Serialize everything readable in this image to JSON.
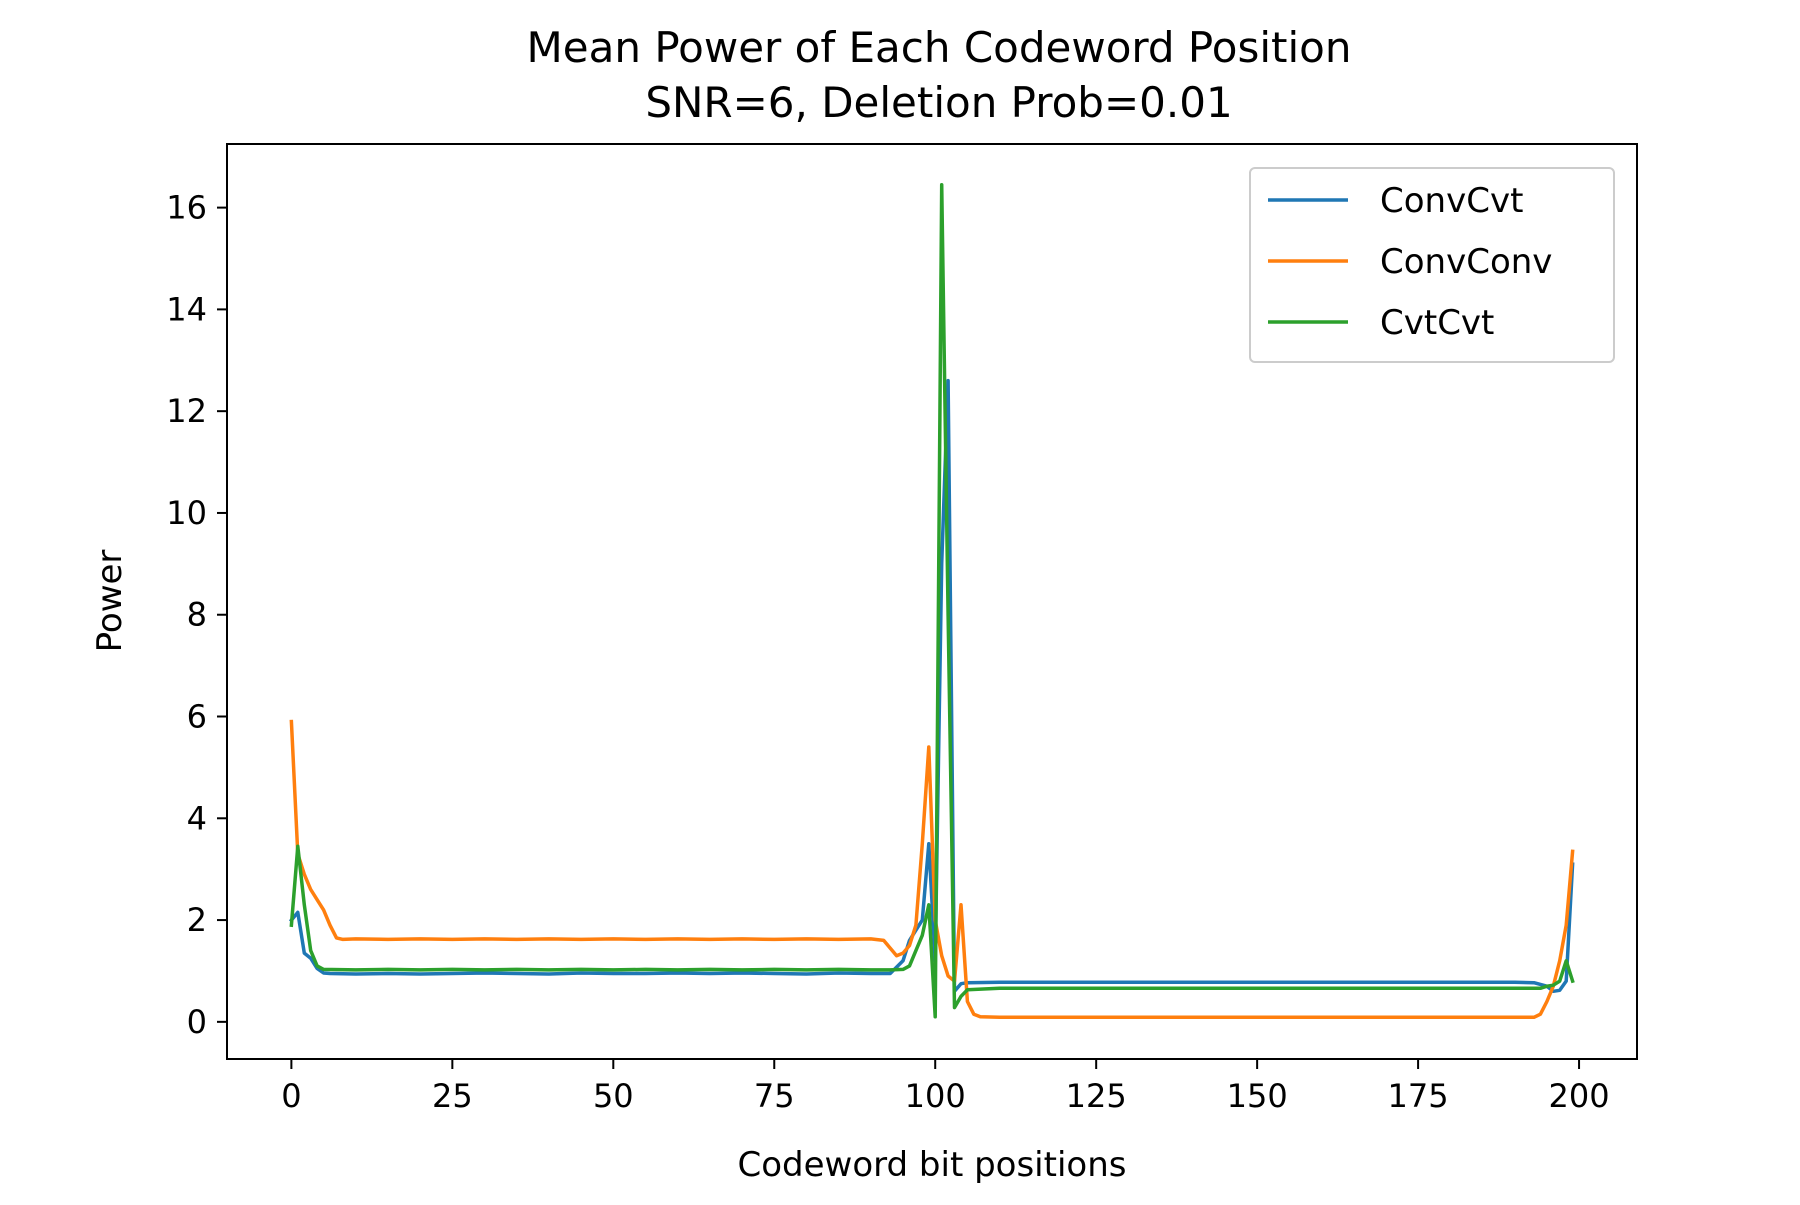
{
  "chart_data": {
    "type": "line",
    "title": "Mean Power of Each Codeword Position",
    "subtitle": "SNR=6, Deletion Prob=0.01",
    "xlabel": "Codeword bit positions",
    "ylabel": "Power",
    "xlim": [
      -10,
      209
    ],
    "ylim": [
      -0.73,
      17.25
    ],
    "xticks": [
      0,
      25,
      50,
      75,
      100,
      125,
      150,
      175,
      200
    ],
    "yticks": [
      0,
      2,
      4,
      6,
      8,
      10,
      12,
      14,
      16
    ],
    "grid": false,
    "legend_position": "top-right",
    "series": [
      {
        "name": "ConvCvt",
        "color": "#1f77b4",
        "points": [
          [
            0,
            2.0
          ],
          [
            1,
            2.15
          ],
          [
            2,
            1.35
          ],
          [
            3,
            1.25
          ],
          [
            4,
            1.05
          ],
          [
            5,
            0.96
          ],
          [
            6,
            0.95
          ],
          [
            10,
            0.94
          ],
          [
            15,
            0.95
          ],
          [
            20,
            0.94
          ],
          [
            25,
            0.95
          ],
          [
            30,
            0.96
          ],
          [
            35,
            0.95
          ],
          [
            40,
            0.94
          ],
          [
            45,
            0.96
          ],
          [
            50,
            0.95
          ],
          [
            55,
            0.95
          ],
          [
            60,
            0.96
          ],
          [
            65,
            0.95
          ],
          [
            70,
            0.96
          ],
          [
            75,
            0.95
          ],
          [
            80,
            0.94
          ],
          [
            85,
            0.96
          ],
          [
            90,
            0.95
          ],
          [
            93,
            0.95
          ],
          [
            95,
            1.2
          ],
          [
            96,
            1.6
          ],
          [
            97,
            1.8
          ],
          [
            98,
            2.0
          ],
          [
            99,
            3.5
          ],
          [
            100,
            1.2
          ],
          [
            101,
            9.0
          ],
          [
            102,
            12.6
          ],
          [
            103,
            0.6
          ],
          [
            104,
            0.75
          ],
          [
            105,
            0.77
          ],
          [
            110,
            0.78
          ],
          [
            120,
            0.78
          ],
          [
            130,
            0.78
          ],
          [
            140,
            0.78
          ],
          [
            150,
            0.78
          ],
          [
            160,
            0.78
          ],
          [
            170,
            0.78
          ],
          [
            180,
            0.78
          ],
          [
            190,
            0.78
          ],
          [
            193,
            0.77
          ],
          [
            195,
            0.7
          ],
          [
            196,
            0.6
          ],
          [
            197,
            0.62
          ],
          [
            198,
            0.8
          ],
          [
            199,
            3.1
          ]
        ]
      },
      {
        "name": "ConvConv",
        "color": "#ff7f0e",
        "points": [
          [
            0,
            5.9
          ],
          [
            1,
            3.3
          ],
          [
            2,
            2.9
          ],
          [
            3,
            2.6
          ],
          [
            4,
            2.4
          ],
          [
            5,
            2.2
          ],
          [
            6,
            1.9
          ],
          [
            7,
            1.65
          ],
          [
            8,
            1.62
          ],
          [
            10,
            1.63
          ],
          [
            15,
            1.62
          ],
          [
            20,
            1.63
          ],
          [
            25,
            1.62
          ],
          [
            30,
            1.63
          ],
          [
            35,
            1.62
          ],
          [
            40,
            1.63
          ],
          [
            45,
            1.62
          ],
          [
            50,
            1.63
          ],
          [
            55,
            1.62
          ],
          [
            60,
            1.63
          ],
          [
            65,
            1.62
          ],
          [
            70,
            1.63
          ],
          [
            75,
            1.62
          ],
          [
            80,
            1.63
          ],
          [
            85,
            1.62
          ],
          [
            90,
            1.63
          ],
          [
            92,
            1.6
          ],
          [
            93,
            1.45
          ],
          [
            94,
            1.3
          ],
          [
            95,
            1.35
          ],
          [
            96,
            1.5
          ],
          [
            97,
            1.9
          ],
          [
            98,
            3.5
          ],
          [
            99,
            5.4
          ],
          [
            100,
            2.0
          ],
          [
            101,
            1.3
          ],
          [
            102,
            0.9
          ],
          [
            103,
            0.8
          ],
          [
            104,
            2.3
          ],
          [
            105,
            0.4
          ],
          [
            106,
            0.15
          ],
          [
            107,
            0.1
          ],
          [
            110,
            0.09
          ],
          [
            120,
            0.09
          ],
          [
            130,
            0.09
          ],
          [
            140,
            0.09
          ],
          [
            150,
            0.09
          ],
          [
            160,
            0.09
          ],
          [
            170,
            0.09
          ],
          [
            180,
            0.09
          ],
          [
            190,
            0.09
          ],
          [
            193,
            0.09
          ],
          [
            194,
            0.15
          ],
          [
            195,
            0.4
          ],
          [
            196,
            0.7
          ],
          [
            197,
            1.2
          ],
          [
            198,
            1.9
          ],
          [
            199,
            3.35
          ]
        ]
      },
      {
        "name": "CvtCvt",
        "color": "#2ca02c",
        "points": [
          [
            0,
            1.9
          ],
          [
            1,
            3.45
          ],
          [
            2,
            2.3
          ],
          [
            3,
            1.4
          ],
          [
            4,
            1.1
          ],
          [
            5,
            1.03
          ],
          [
            10,
            1.02
          ],
          [
            15,
            1.03
          ],
          [
            20,
            1.02
          ],
          [
            25,
            1.03
          ],
          [
            30,
            1.02
          ],
          [
            35,
            1.03
          ],
          [
            40,
            1.02
          ],
          [
            45,
            1.03
          ],
          [
            50,
            1.02
          ],
          [
            55,
            1.03
          ],
          [
            60,
            1.02
          ],
          [
            65,
            1.03
          ],
          [
            70,
            1.02
          ],
          [
            75,
            1.03
          ],
          [
            80,
            1.02
          ],
          [
            85,
            1.03
          ],
          [
            90,
            1.02
          ],
          [
            93,
            1.02
          ],
          [
            95,
            1.03
          ],
          [
            96,
            1.1
          ],
          [
            97,
            1.4
          ],
          [
            98,
            1.7
          ],
          [
            99,
            2.3
          ],
          [
            100,
            0.1
          ],
          [
            101,
            16.45
          ],
          [
            102,
            8.0
          ],
          [
            103,
            0.28
          ],
          [
            104,
            0.5
          ],
          [
            105,
            0.63
          ],
          [
            110,
            0.66
          ],
          [
            120,
            0.66
          ],
          [
            130,
            0.66
          ],
          [
            140,
            0.66
          ],
          [
            150,
            0.66
          ],
          [
            160,
            0.66
          ],
          [
            170,
            0.66
          ],
          [
            180,
            0.66
          ],
          [
            190,
            0.66
          ],
          [
            194,
            0.66
          ],
          [
            195,
            0.7
          ],
          [
            196,
            0.72
          ],
          [
            197,
            0.8
          ],
          [
            198,
            1.2
          ],
          [
            199,
            0.8
          ]
        ]
      }
    ]
  }
}
